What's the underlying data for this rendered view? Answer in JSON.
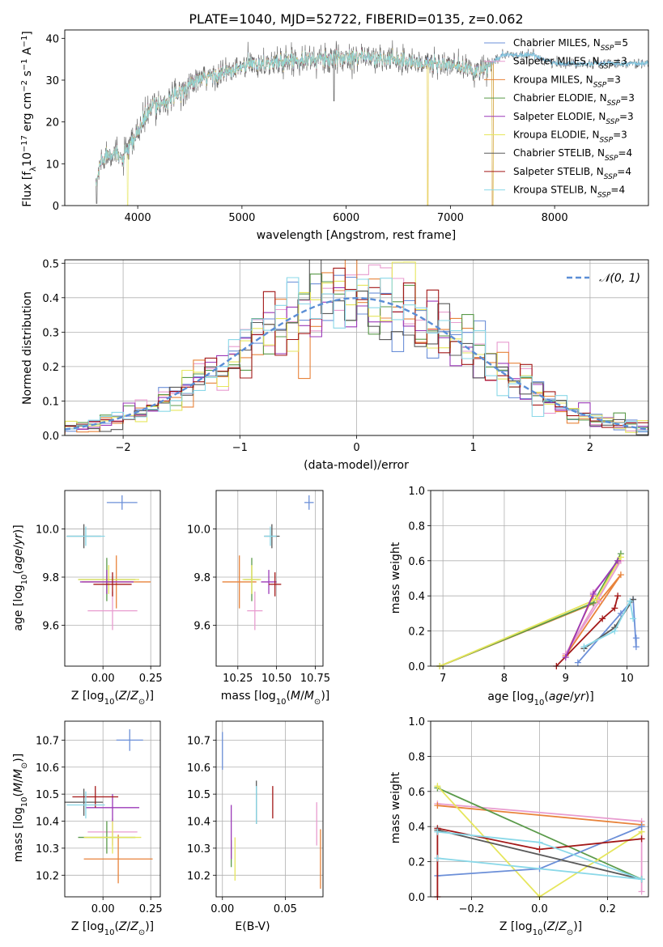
{
  "colors": {
    "cm": "#6b8fd8",
    "sm": "#e89ccf",
    "km": "#e8833a",
    "ce": "#5a9a4a",
    "se": "#9b39b8",
    "ke": "#e6e65c",
    "cs": "#5a5a5a",
    "ss": "#a31818",
    "ks": "#8ad8e8",
    "normal": "#5b8ed6",
    "grid": "#b0b0b0"
  },
  "chart_data": [
    {
      "type": "line",
      "title": "PLATE=1040, MJD=52722, FIBERID=0135, z=0.062",
      "xlabel": "wavelength [Angstrom, rest frame]",
      "ylabel": "Flux [f_λ 10^-17 erg cm^-2 s^-1 A^-1]",
      "xlim": [
        3300,
        8900
      ],
      "ylim": [
        0,
        42
      ],
      "xticks": [
        "4000",
        "5000",
        "6000",
        "7000",
        "8000"
      ],
      "yticks": [
        "0",
        "10",
        "20",
        "30",
        "40"
      ],
      "grid": false,
      "legend_position": "upper-right",
      "spectrum_envelope_points": [
        [
          3600,
          5
        ],
        [
          3650,
          11
        ],
        [
          3750,
          13
        ],
        [
          3850,
          11
        ],
        [
          3950,
          15
        ],
        [
          4050,
          20
        ],
        [
          4150,
          24
        ],
        [
          4300,
          25
        ],
        [
          4500,
          29
        ],
        [
          4700,
          31
        ],
        [
          4900,
          32
        ],
        [
          5100,
          34
        ],
        [
          5300,
          34
        ],
        [
          5500,
          35
        ],
        [
          5700,
          35
        ],
        [
          5900,
          35
        ],
        [
          6100,
          36
        ],
        [
          6300,
          35
        ],
        [
          6500,
          35
        ],
        [
          6700,
          34
        ],
        [
          6900,
          34
        ],
        [
          7100,
          33
        ],
        [
          7300,
          32
        ],
        [
          7500,
          36
        ],
        [
          7800,
          36
        ],
        [
          8000,
          34
        ],
        [
          8200,
          34
        ],
        [
          8500,
          34
        ]
      ],
      "series": [
        {
          "key": "cm",
          "name": "Chabrier MILES, N_SSP=5"
        },
        {
          "key": "sm",
          "name": "Salpeter MILES, N_SSP=3"
        },
        {
          "key": "km",
          "name": "Kroupa MILES, N_SSP=3"
        },
        {
          "key": "ce",
          "name": "Chabrier ELODIE, N_SSP=3"
        },
        {
          "key": "se",
          "name": "Salpeter ELODIE, N_SSP=3"
        },
        {
          "key": "ke",
          "name": "Kroupa ELODIE, N_SSP=3"
        },
        {
          "key": "cs",
          "name": "Chabrier STELIB, N_SSP=4"
        },
        {
          "key": "ss",
          "name": "Salpeter STELIB, N_SSP=4"
        },
        {
          "key": "ks",
          "name": "Kroupa STELIB, N_SSP=4"
        }
      ]
    },
    {
      "type": "bar",
      "title": "",
      "xlabel": "(data-model)/error",
      "ylabel": "Normed distribution",
      "xlim": [
        -2.5,
        2.5
      ],
      "ylim": [
        0,
        0.51
      ],
      "xticks": [
        "−2",
        "−1",
        "0",
        "1",
        "2"
      ],
      "yticks": [
        "0.0",
        "0.1",
        "0.2",
        "0.3",
        "0.4",
        "0.5"
      ],
      "grid": true,
      "bin_width": 0.1,
      "legend_label": "N(0,1)"
    },
    {
      "type": "scatter",
      "xlabel": "Z [log10(Z/Z⊙)]",
      "ylabel": "age  [log10(age/yr)]",
      "xlim": [
        -0.2,
        0.3
      ],
      "ylim": [
        9.43,
        10.16
      ],
      "xticks": [
        "0.00",
        "0.25"
      ],
      "yticks": [
        "9.6",
        "9.8",
        "10.0"
      ],
      "grid": true,
      "points": [
        {
          "key": "cm",
          "x": 0.1,
          "y": 10.11,
          "xerr": 0.08,
          "yerr": 0.03
        },
        {
          "key": "km",
          "x": 0.07,
          "y": 9.78,
          "xerr": 0.18,
          "yerr": 0.11
        },
        {
          "key": "sm",
          "x": 0.05,
          "y": 9.66,
          "xerr": 0.13,
          "yerr": 0.08
        },
        {
          "key": "ce",
          "x": 0.02,
          "y": 9.79,
          "xerr": 0.15,
          "yerr": 0.09
        },
        {
          "key": "ke",
          "x": 0.03,
          "y": 9.79,
          "xerr": 0.16,
          "yerr": 0.06
        },
        {
          "key": "se",
          "x": 0.02,
          "y": 9.78,
          "xerr": 0.14,
          "yerr": 0.05
        },
        {
          "key": "cs",
          "x": -0.1,
          "y": 9.97,
          "xerr": 0.09,
          "yerr": 0.05
        },
        {
          "key": "ss",
          "x": 0.05,
          "y": 9.77,
          "xerr": 0.1,
          "yerr": 0.05
        },
        {
          "key": "ks",
          "x": -0.09,
          "y": 9.97,
          "xerr": 0.1,
          "yerr": 0.04
        }
      ]
    },
    {
      "type": "scatter",
      "xlabel": "mass [log10(M/M⊙)]",
      "ylabel": "",
      "xlim": [
        10.11,
        10.8
      ],
      "ylim": [
        9.43,
        10.16
      ],
      "xticks": [
        "10.25",
        "10.50",
        "10.75"
      ],
      "yticks": [
        "9.6",
        "9.8",
        "10.0"
      ],
      "grid": true,
      "points": [
        {
          "key": "cm",
          "x": 10.71,
          "y": 10.11,
          "xerr": 0.03,
          "yerr": 0.03
        },
        {
          "key": "km",
          "x": 10.26,
          "y": 9.78,
          "xerr": 0.11,
          "yerr": 0.11
        },
        {
          "key": "sm",
          "x": 10.36,
          "y": 9.66,
          "xerr": 0.05,
          "yerr": 0.08
        },
        {
          "key": "ce",
          "x": 10.34,
          "y": 9.79,
          "xerr": 0.05,
          "yerr": 0.09
        },
        {
          "key": "ke",
          "x": 10.34,
          "y": 9.79,
          "xerr": 0.06,
          "yerr": 0.06
        },
        {
          "key": "se",
          "x": 10.45,
          "y": 9.78,
          "xerr": 0.05,
          "yerr": 0.05
        },
        {
          "key": "cs",
          "x": 10.47,
          "y": 9.97,
          "xerr": 0.05,
          "yerr": 0.05
        },
        {
          "key": "ss",
          "x": 10.49,
          "y": 9.77,
          "xerr": 0.04,
          "yerr": 0.05
        },
        {
          "key": "ks",
          "x": 10.46,
          "y": 9.97,
          "xerr": 0.04,
          "yerr": 0.04
        }
      ]
    },
    {
      "type": "line",
      "xlabel": "age  [log10(age/yr)]",
      "ylabel": "mass weight",
      "xlim": [
        6.8,
        10.35
      ],
      "ylim": [
        0,
        1
      ],
      "xticks": [
        "7",
        "8",
        "9",
        "10"
      ],
      "yticks": [
        "0.0",
        "0.2",
        "0.4",
        "0.6",
        "0.8",
        "1.0"
      ],
      "grid": true,
      "series": [
        {
          "key": "km",
          "points": [
            [
              6.95,
              0.0
            ],
            [
              9.55,
              0.37
            ],
            [
              9.9,
              0.52
            ],
            [
              9.0,
              0.06
            ],
            [
              9.45,
              0.4
            ]
          ]
        },
        {
          "key": "sm",
          "points": [
            [
              9.45,
              0.42
            ],
            [
              9.9,
              0.6
            ],
            [
              9.0,
              0.07
            ],
            [
              9.55,
              0.37
            ]
          ]
        },
        {
          "key": "ce",
          "points": [
            [
              6.95,
              0.0
            ],
            [
              9.45,
              0.36
            ],
            [
              9.9,
              0.64
            ]
          ]
        },
        {
          "key": "ke",
          "points": [
            [
              6.95,
              0.0
            ],
            [
              9.5,
              0.38
            ],
            [
              9.9,
              0.62
            ]
          ]
        },
        {
          "key": "ss",
          "points": [
            [
              8.85,
              0.0
            ],
            [
              9.6,
              0.27
            ],
            [
              9.8,
              0.33
            ],
            [
              9.85,
              0.4
            ]
          ]
        },
        {
          "key": "se",
          "points": [
            [
              9.0,
              0.05
            ],
            [
              9.45,
              0.41
            ],
            [
              9.85,
              0.6
            ]
          ]
        },
        {
          "key": "cm",
          "points": [
            [
              9.2,
              0.02
            ],
            [
              9.9,
              0.3
            ],
            [
              10.1,
              0.38
            ],
            [
              10.15,
              0.11
            ],
            [
              10.15,
              0.16
            ]
          ]
        },
        {
          "key": "cs",
          "points": [
            [
              9.3,
              0.1
            ],
            [
              9.8,
              0.22
            ],
            [
              10.1,
              0.38
            ]
          ]
        },
        {
          "key": "ks",
          "points": [
            [
              9.3,
              0.11
            ],
            [
              9.8,
              0.2
            ],
            [
              10.05,
              0.37
            ],
            [
              10.1,
              0.27
            ]
          ]
        }
      ]
    },
    {
      "type": "scatter",
      "xlabel": "Z [log10(Z/Z⊙)]",
      "ylabel": "mass [log10(M/M⊙)]",
      "xlim": [
        -0.2,
        0.3
      ],
      "ylim": [
        10.12,
        10.77
      ],
      "xticks": [
        "0.00",
        "0.25"
      ],
      "yticks": [
        "10.2",
        "10.3",
        "10.4",
        "10.5",
        "10.6",
        "10.7"
      ],
      "grid": true,
      "points": [
        {
          "key": "cm",
          "x": 0.14,
          "y": 10.7,
          "xerr": 0.07,
          "yerr": 0.04
        },
        {
          "key": "km",
          "x": 0.08,
          "y": 10.26,
          "xerr": 0.18,
          "yerr": 0.09
        },
        {
          "key": "sm",
          "x": 0.05,
          "y": 10.36,
          "xerr": 0.13,
          "yerr": 0.05
        },
        {
          "key": "ce",
          "x": 0.02,
          "y": 10.34,
          "xerr": 0.15,
          "yerr": 0.06
        },
        {
          "key": "ke",
          "x": 0.05,
          "y": 10.34,
          "xerr": 0.15,
          "yerr": 0.06
        },
        {
          "key": "se",
          "x": 0.05,
          "y": 10.45,
          "xerr": 0.14,
          "yerr": 0.05
        },
        {
          "key": "cs",
          "x": -0.1,
          "y": 10.47,
          "xerr": 0.1,
          "yerr": 0.05
        },
        {
          "key": "ss",
          "x": -0.04,
          "y": 10.49,
          "xerr": 0.12,
          "yerr": 0.04
        },
        {
          "key": "ks",
          "x": -0.09,
          "y": 10.46,
          "xerr": 0.1,
          "yerr": 0.05
        }
      ]
    },
    {
      "type": "scatter",
      "xlabel": "E(B-V)",
      "ylabel": "",
      "xlim": [
        -0.005,
        0.08
      ],
      "ylim": [
        10.12,
        10.77
      ],
      "xticks": [
        "0.00",
        "0.05"
      ],
      "yticks": [
        "10.2",
        "10.3",
        "10.4",
        "10.5",
        "10.6",
        "10.7"
      ],
      "grid": true,
      "points": [
        {
          "key": "cm",
          "x": 0.0,
          "y": 10.66,
          "xerr": 0,
          "yerr": 0.07
        },
        {
          "key": "km",
          "x": 0.078,
          "y": 10.26,
          "xerr": 0,
          "yerr": 0.11
        },
        {
          "key": "sm",
          "x": 0.075,
          "y": 10.39,
          "xerr": 0,
          "yerr": 0.08
        },
        {
          "key": "ce",
          "x": 0.007,
          "y": 10.28,
          "xerr": 0,
          "yerr": 0.05
        },
        {
          "key": "ke",
          "x": 0.01,
          "y": 10.26,
          "xerr": 0,
          "yerr": 0.08
        },
        {
          "key": "se",
          "x": 0.007,
          "y": 10.36,
          "xerr": 0,
          "yerr": 0.1
        },
        {
          "key": "cs",
          "x": 0.027,
          "y": 10.47,
          "xerr": 0,
          "yerr": 0.08
        },
        {
          "key": "ss",
          "x": 0.04,
          "y": 10.47,
          "xerr": 0,
          "yerr": 0.06
        },
        {
          "key": "ks",
          "x": 0.027,
          "y": 10.46,
          "xerr": 0,
          "yerr": 0.07
        }
      ]
    },
    {
      "type": "line",
      "xlabel": "Z [log10(Z/Z⊙)]",
      "ylabel": "mass weight",
      "xlim": [
        -0.32,
        0.32
      ],
      "ylim": [
        0,
        1
      ],
      "xticks": [
        "−0.2",
        "0.0",
        "0.2"
      ],
      "yticks": [
        "0.0",
        "0.2",
        "0.4",
        "0.6",
        "0.8",
        "1.0"
      ],
      "grid": true,
      "series": [
        {
          "key": "sm",
          "points": [
            [
              -0.3,
              0.53
            ],
            [
              0.3,
              0.43
            ],
            [
              0.3,
              0.03
            ]
          ]
        },
        {
          "key": "km",
          "points": [
            [
              -0.3,
              0.52
            ],
            [
              0.3,
              0.41
            ]
          ]
        },
        {
          "key": "ce",
          "points": [
            [
              -0.3,
              0.62
            ],
            [
              0.3,
              0.1
            ]
          ]
        },
        {
          "key": "ke",
          "points": [
            [
              -0.3,
              0.63
            ],
            [
              0.0,
              0.0
            ],
            [
              0.3,
              0.37
            ]
          ]
        },
        {
          "key": "cm",
          "points": [
            [
              -0.3,
              0.12
            ],
            [
              0.0,
              0.16
            ],
            [
              0.3,
              0.4
            ]
          ]
        },
        {
          "key": "ss",
          "points": [
            [
              -0.3,
              0.0
            ],
            [
              -0.3,
              0.39
            ],
            [
              0.0,
              0.27
            ],
            [
              0.3,
              0.33
            ]
          ]
        },
        {
          "key": "cs",
          "points": [
            [
              -0.3,
              0.38
            ],
            [
              0.3,
              0.1
            ]
          ]
        },
        {
          "key": "ks",
          "points": [
            [
              -0.3,
              0.37
            ],
            [
              0.0,
              0.31
            ],
            [
              0.3,
              0.1
            ],
            [
              -0.3,
              0.22
            ]
          ]
        }
      ]
    }
  ]
}
